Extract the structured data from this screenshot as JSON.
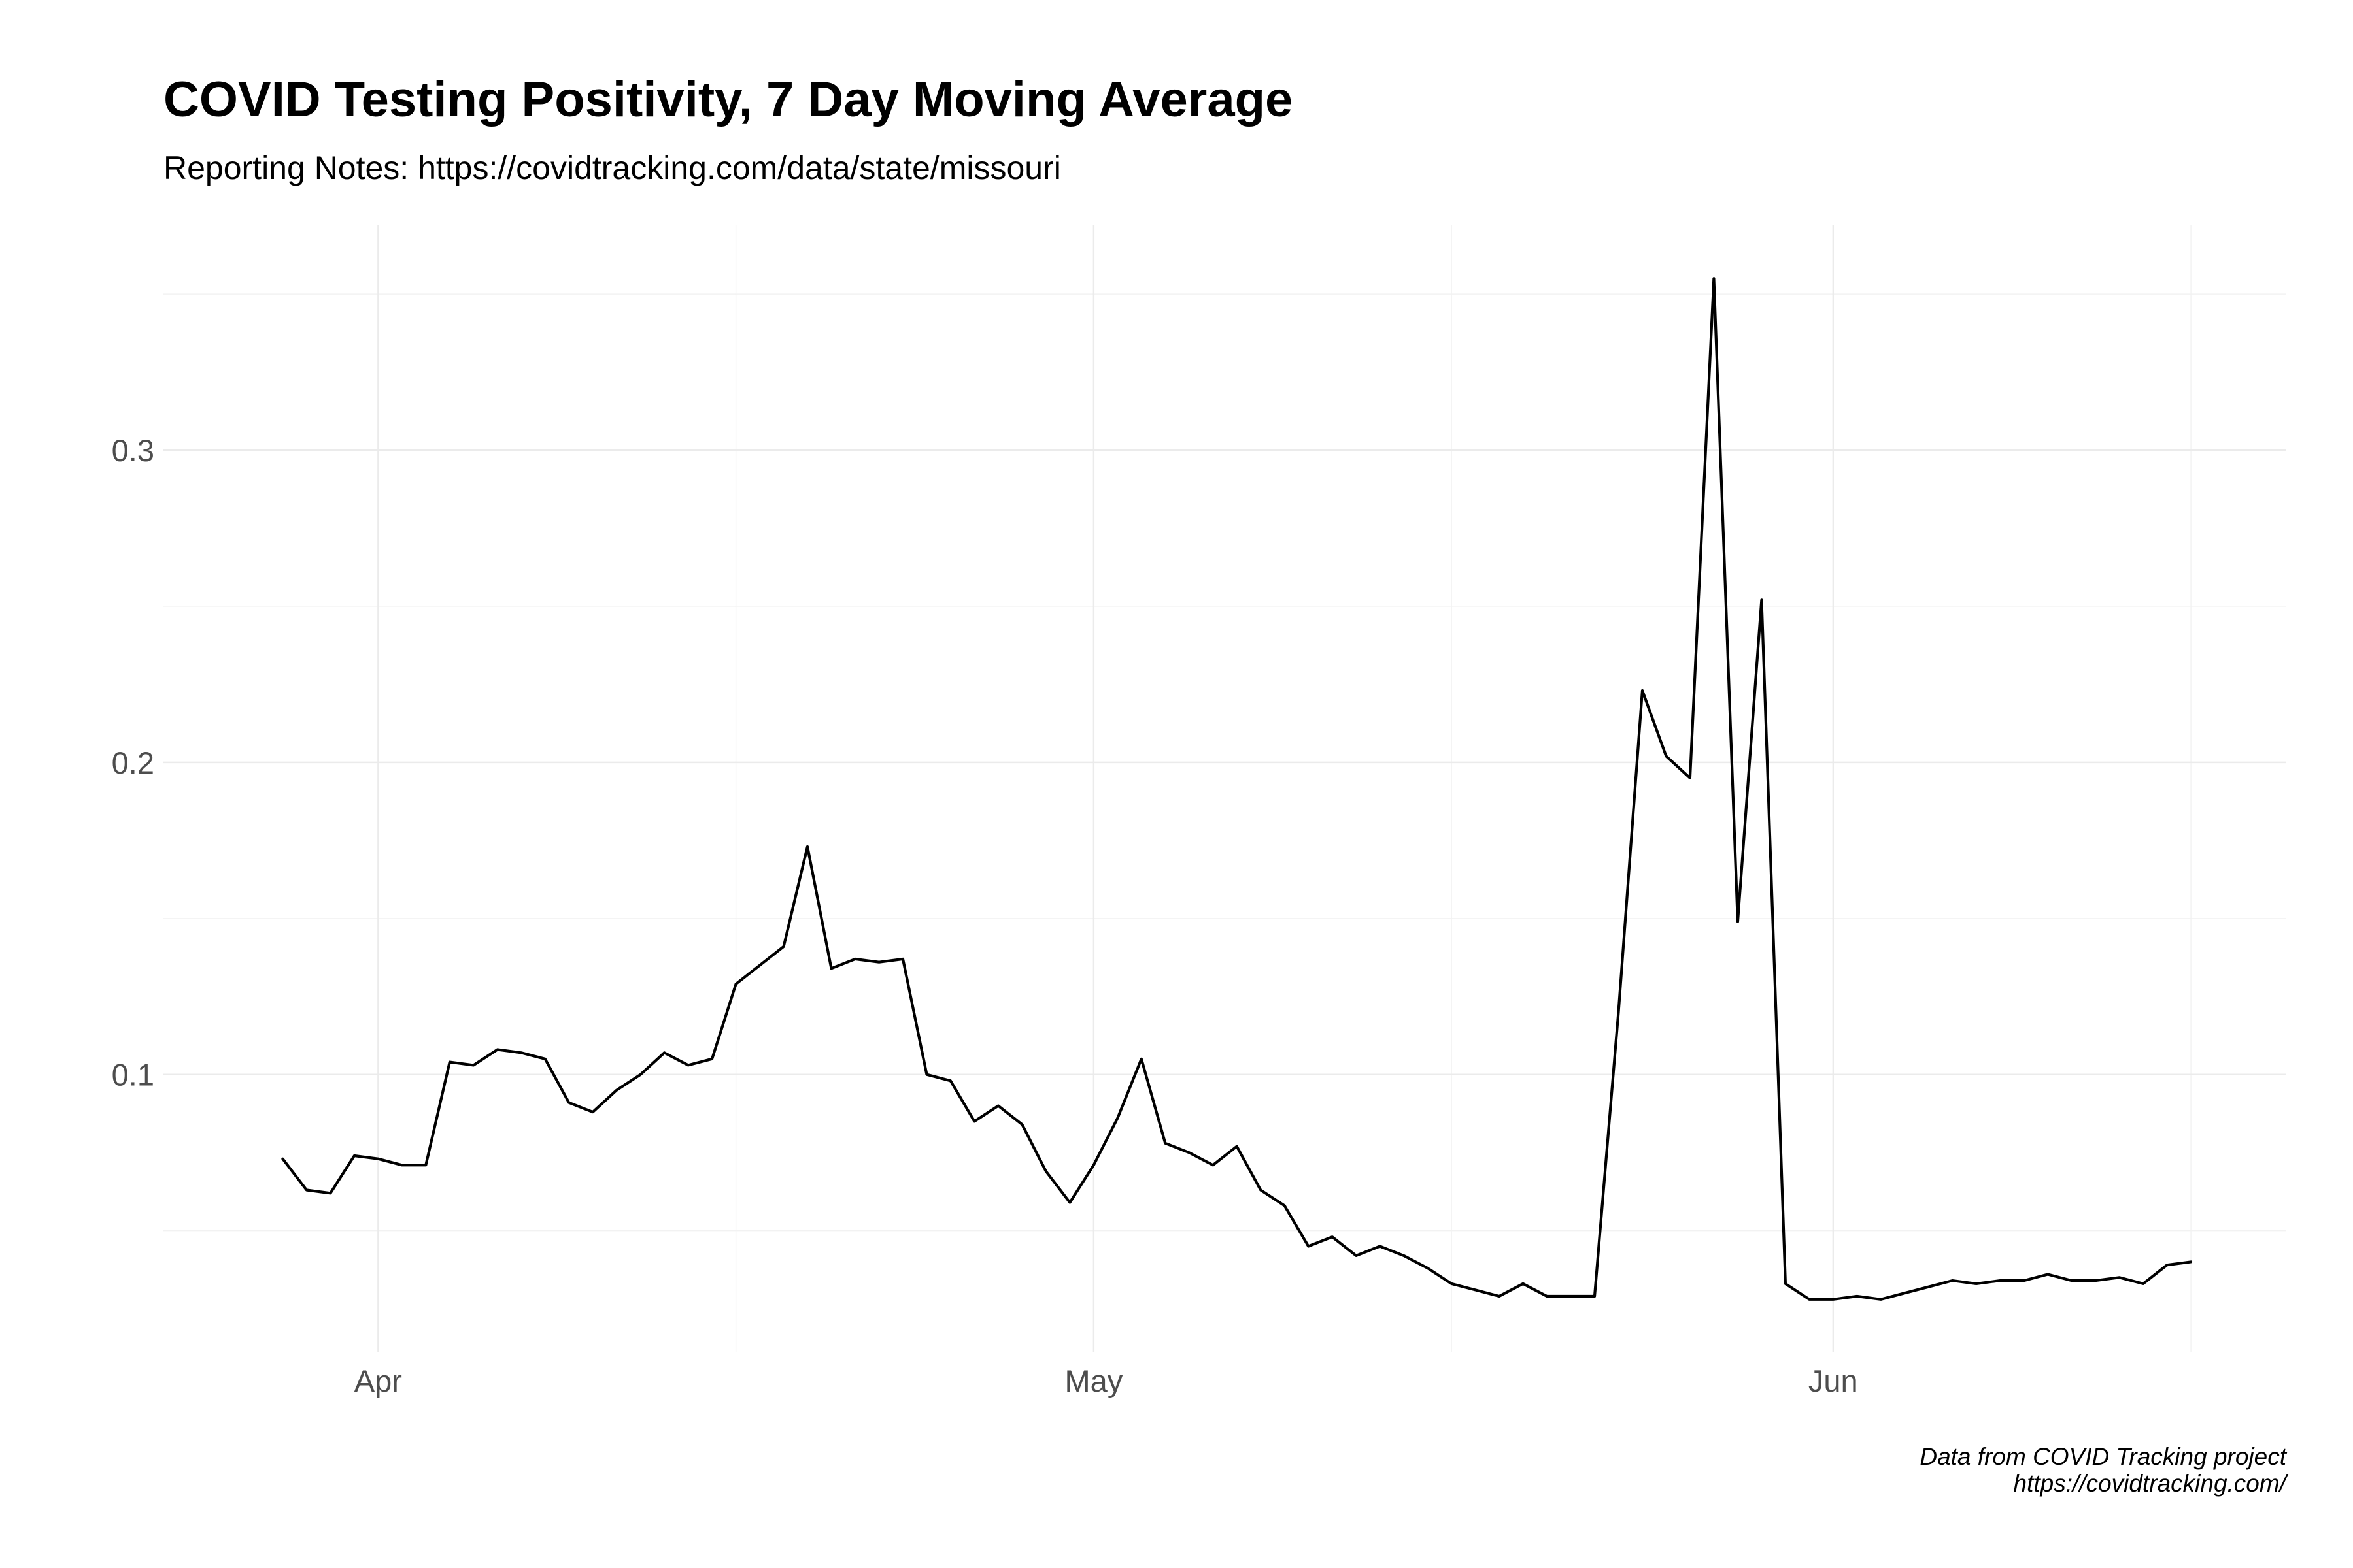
{
  "chart_data": {
    "type": "line",
    "title": "COVID Testing Positivity, 7 Day Moving Average",
    "subtitle": "Reporting Notes: https://covidtracking.com/data/state/missouri",
    "caption": [
      "Data from COVID Tracking project",
      "https://covidtracking.com/"
    ],
    "xlabel": "",
    "ylabel": "",
    "x_ticks": [
      {
        "date": "2020-04-01",
        "label": "Apr"
      },
      {
        "date": "2020-05-01",
        "label": "May"
      },
      {
        "date": "2020-06-01",
        "label": "Jun"
      }
    ],
    "x_minor_ticks": [
      "2020-04-16",
      "2020-05-16",
      "2020-06-16"
    ],
    "y_ticks": [
      {
        "value": 0.1,
        "label": "0.1"
      },
      {
        "value": 0.2,
        "label": "0.2"
      },
      {
        "value": 0.3,
        "label": "0.3"
      }
    ],
    "y_minor_ticks": [
      0.05,
      0.15,
      0.25,
      0.35
    ],
    "xlim": [
      "2020-03-23",
      "2020-06-20"
    ],
    "ylim": [
      0.011,
      0.372
    ],
    "grid": true,
    "legend": "none",
    "line_color": "#000000",
    "series": [
      {
        "x": [
          "2020-03-28",
          "2020-03-29",
          "2020-03-30",
          "2020-03-31",
          "2020-04-01",
          "2020-04-02",
          "2020-04-03",
          "2020-04-04",
          "2020-04-05",
          "2020-04-06",
          "2020-04-07",
          "2020-04-08",
          "2020-04-09",
          "2020-04-10",
          "2020-04-11",
          "2020-04-12",
          "2020-04-13",
          "2020-04-14",
          "2020-04-15",
          "2020-04-16",
          "2020-04-17",
          "2020-04-18",
          "2020-04-19",
          "2020-04-20",
          "2020-04-21",
          "2020-04-22",
          "2020-04-23",
          "2020-04-24",
          "2020-04-25",
          "2020-04-26",
          "2020-04-27",
          "2020-04-28",
          "2020-04-29",
          "2020-04-30",
          "2020-05-01",
          "2020-05-02",
          "2020-05-03",
          "2020-05-04",
          "2020-05-05",
          "2020-05-06",
          "2020-05-07",
          "2020-05-08",
          "2020-05-09",
          "2020-05-10",
          "2020-05-11",
          "2020-05-12",
          "2020-05-13",
          "2020-05-14",
          "2020-05-15",
          "2020-05-16",
          "2020-05-17",
          "2020-05-18",
          "2020-05-19",
          "2020-05-20",
          "2020-05-21",
          "2020-05-22",
          "2020-05-23",
          "2020-05-24",
          "2020-05-25",
          "2020-05-26",
          "2020-05-27",
          "2020-05-28",
          "2020-05-29",
          "2020-05-30",
          "2020-05-31",
          "2020-06-01",
          "2020-06-02",
          "2020-06-03",
          "2020-06-04",
          "2020-06-05",
          "2020-06-06",
          "2020-06-07",
          "2020-06-08",
          "2020-06-09",
          "2020-06-10",
          "2020-06-11",
          "2020-06-12",
          "2020-06-13",
          "2020-06-14",
          "2020-06-15",
          "2020-06-16"
        ],
        "y": [
          0.073,
          0.063,
          0.062,
          0.074,
          0.073,
          0.071,
          0.071,
          0.104,
          0.103,
          0.108,
          0.107,
          0.105,
          0.091,
          0.088,
          0.095,
          0.1,
          0.107,
          0.103,
          0.105,
          0.129,
          0.135,
          0.141,
          0.173,
          0.134,
          0.137,
          0.136,
          0.137,
          0.1,
          0.098,
          0.085,
          0.09,
          0.084,
          0.069,
          0.059,
          0.071,
          0.086,
          0.105,
          0.078,
          0.075,
          0.071,
          0.077,
          0.063,
          0.058,
          0.045,
          0.048,
          0.042,
          0.045,
          0.042,
          0.038,
          0.033,
          0.031,
          0.029,
          0.033,
          0.029,
          0.029,
          0.029,
          0.12,
          0.223,
          0.202,
          0.195,
          0.355,
          0.149,
          0.252,
          0.033,
          0.028,
          0.028,
          0.029,
          0.028,
          0.03,
          0.032,
          0.034,
          0.033,
          0.034,
          0.034,
          0.036,
          0.034,
          0.034,
          0.035,
          0.033,
          0.039,
          0.04
        ]
      }
    ]
  }
}
